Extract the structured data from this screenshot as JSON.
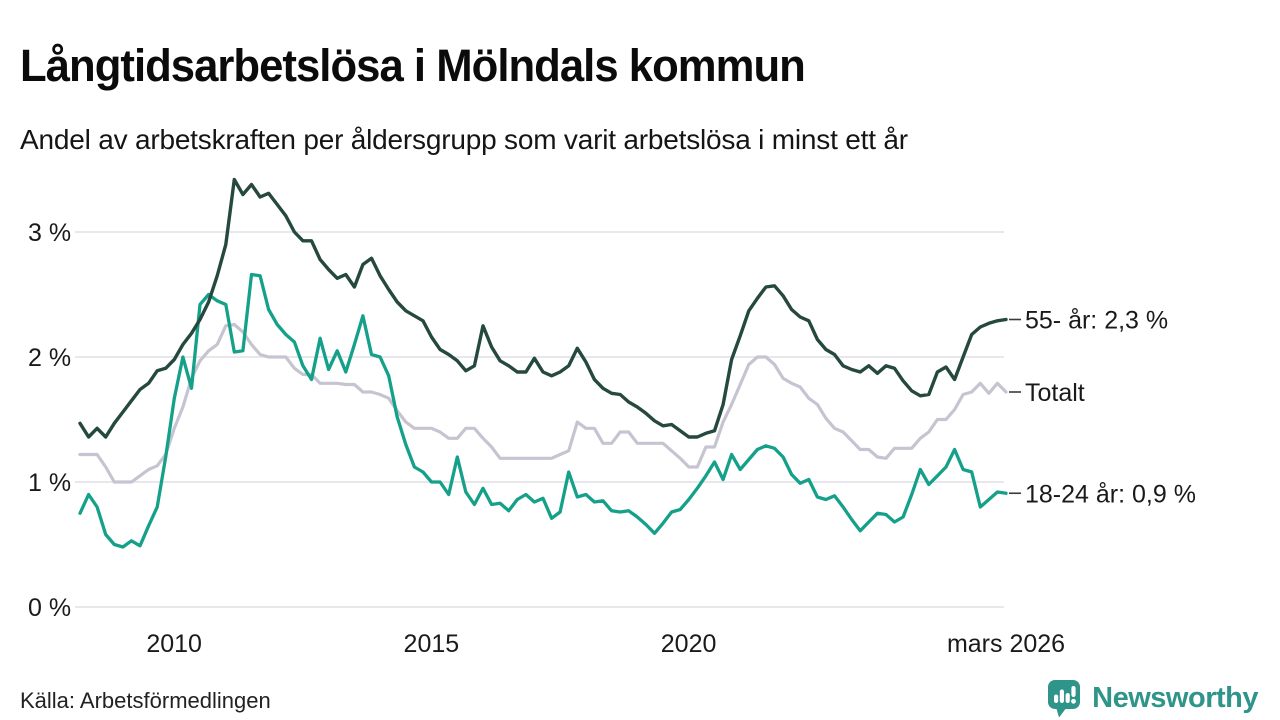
{
  "header": {
    "title": "Långtidsarbetslösa i Mölndals kommun",
    "subtitle": "Andel av arbetskraften per åldersgrupp som varit arbetslösa i minst ett år"
  },
  "chart_data": {
    "type": "line",
    "title": "Långtidsarbetslösa i Mölndals kommun",
    "subtitle": "Andel av arbetskraften per åldersgrupp som varit arbetslösa i minst ett år",
    "unit": "%",
    "grid": true,
    "legend_position": "right-end-labels",
    "x_start_year": 2008.17,
    "x_end_year": 2026.17,
    "points_per_year": 6,
    "ylim": [
      0,
      3.6
    ],
    "y_ticks": [
      {
        "label": "0 %",
        "value": 0
      },
      {
        "label": "1 %",
        "value": 1
      },
      {
        "label": "2 %",
        "value": 2
      },
      {
        "label": "3 %",
        "value": 3
      }
    ],
    "x_ticks": [
      {
        "label": "2010",
        "year": 2010
      },
      {
        "label": "2015",
        "year": 2015
      },
      {
        "label": "2020",
        "year": 2020
      },
      {
        "label": "mars 2026",
        "year": 2026.17
      }
    ],
    "series": [
      {
        "name": "Totalt",
        "end_label": "Totalt",
        "end_value": 1.72,
        "color": "#C7C4D2",
        "stroke_width": 3.2,
        "values": [
          1.22,
          1.22,
          1.22,
          1.12,
          1.0,
          1.0,
          1.0,
          1.05,
          1.1,
          1.13,
          1.22,
          1.43,
          1.6,
          1.83,
          1.97,
          2.05,
          2.1,
          2.25,
          2.26,
          2.2,
          2.1,
          2.02,
          2.0,
          2.0,
          2.0,
          1.91,
          1.86,
          1.86,
          1.79,
          1.79,
          1.79,
          1.78,
          1.78,
          1.72,
          1.72,
          1.7,
          1.67,
          1.57,
          1.48,
          1.43,
          1.43,
          1.43,
          1.4,
          1.35,
          1.35,
          1.43,
          1.43,
          1.35,
          1.28,
          1.19,
          1.19,
          1.19,
          1.19,
          1.19,
          1.19,
          1.19,
          1.22,
          1.25,
          1.48,
          1.43,
          1.43,
          1.31,
          1.31,
          1.4,
          1.4,
          1.31,
          1.31,
          1.31,
          1.31,
          1.25,
          1.19,
          1.12,
          1.12,
          1.28,
          1.28,
          1.48,
          1.62,
          1.78,
          1.94,
          2.0,
          2.0,
          1.94,
          1.83,
          1.79,
          1.76,
          1.67,
          1.62,
          1.51,
          1.43,
          1.4,
          1.33,
          1.26,
          1.26,
          1.2,
          1.19,
          1.27,
          1.27,
          1.27,
          1.35,
          1.4,
          1.5,
          1.5,
          1.58,
          1.7,
          1.72,
          1.79,
          1.71,
          1.79,
          1.72
        ]
      },
      {
        "name": "18-24 år",
        "end_label": "18-24 år: 0,9 %",
        "end_value": 0.91,
        "color": "#15A08A",
        "stroke_width": 3.3,
        "values": [
          0.75,
          0.9,
          0.8,
          0.58,
          0.5,
          0.48,
          0.53,
          0.49,
          0.65,
          0.8,
          1.2,
          1.67,
          2.0,
          1.75,
          2.42,
          2.5,
          2.45,
          2.42,
          2.04,
          2.05,
          2.66,
          2.65,
          2.38,
          2.26,
          2.18,
          2.12,
          1.93,
          1.82,
          2.15,
          1.9,
          2.05,
          1.88,
          2.1,
          2.33,
          2.02,
          2.0,
          1.85,
          1.52,
          1.3,
          1.12,
          1.08,
          1.0,
          1.0,
          0.9,
          1.2,
          0.92,
          0.82,
          0.95,
          0.82,
          0.83,
          0.77,
          0.86,
          0.9,
          0.84,
          0.87,
          0.71,
          0.76,
          1.08,
          0.88,
          0.9,
          0.84,
          0.85,
          0.77,
          0.76,
          0.77,
          0.72,
          0.66,
          0.59,
          0.67,
          0.76,
          0.78,
          0.86,
          0.95,
          1.05,
          1.16,
          1.02,
          1.22,
          1.1,
          1.18,
          1.26,
          1.29,
          1.27,
          1.2,
          1.06,
          0.99,
          1.02,
          0.88,
          0.86,
          0.89,
          0.8,
          0.7,
          0.61,
          0.68,
          0.75,
          0.74,
          0.68,
          0.72,
          0.9,
          1.1,
          0.98,
          1.05,
          1.12,
          1.26,
          1.1,
          1.08,
          0.8,
          0.86,
          0.92,
          0.91
        ]
      },
      {
        "name": "55- år",
        "end_label": "55- år: 2,3 %",
        "end_value": 2.3,
        "color": "#26493F",
        "stroke_width": 3.4,
        "values": [
          1.47,
          1.36,
          1.43,
          1.36,
          1.47,
          1.56,
          1.65,
          1.74,
          1.79,
          1.89,
          1.91,
          1.98,
          2.1,
          2.19,
          2.3,
          2.44,
          2.65,
          2.9,
          3.42,
          3.3,
          3.38,
          3.28,
          3.31,
          3.22,
          3.13,
          3.0,
          2.93,
          2.93,
          2.78,
          2.7,
          2.63,
          2.66,
          2.56,
          2.74,
          2.79,
          2.65,
          2.54,
          2.44,
          2.37,
          2.33,
          2.29,
          2.16,
          2.06,
          2.02,
          1.97,
          1.89,
          1.93,
          2.25,
          2.08,
          1.97,
          1.93,
          1.88,
          1.88,
          1.99,
          1.88,
          1.85,
          1.88,
          1.93,
          2.07,
          1.96,
          1.82,
          1.75,
          1.71,
          1.7,
          1.64,
          1.6,
          1.55,
          1.49,
          1.45,
          1.46,
          1.41,
          1.36,
          1.36,
          1.39,
          1.41,
          1.62,
          1.98,
          2.17,
          2.37,
          2.47,
          2.56,
          2.57,
          2.49,
          2.38,
          2.32,
          2.29,
          2.14,
          2.06,
          2.02,
          1.93,
          1.9,
          1.88,
          1.93,
          1.87,
          1.93,
          1.91,
          1.81,
          1.73,
          1.69,
          1.7,
          1.88,
          1.92,
          1.82,
          2.0,
          2.18,
          2.24,
          2.27,
          2.29,
          2.3
        ]
      }
    ]
  },
  "footer": {
    "source": "Källa: Arbetsförmedlingen",
    "brand": "Newsworthy"
  },
  "colors": {
    "grid": "#E8E7EB",
    "axis_text": "#1A1A1A",
    "label_text": "#1A1A1A",
    "connector": "#3A3A3A",
    "brand_teal": "#2F948A",
    "bubble_teal": "#38988D"
  }
}
